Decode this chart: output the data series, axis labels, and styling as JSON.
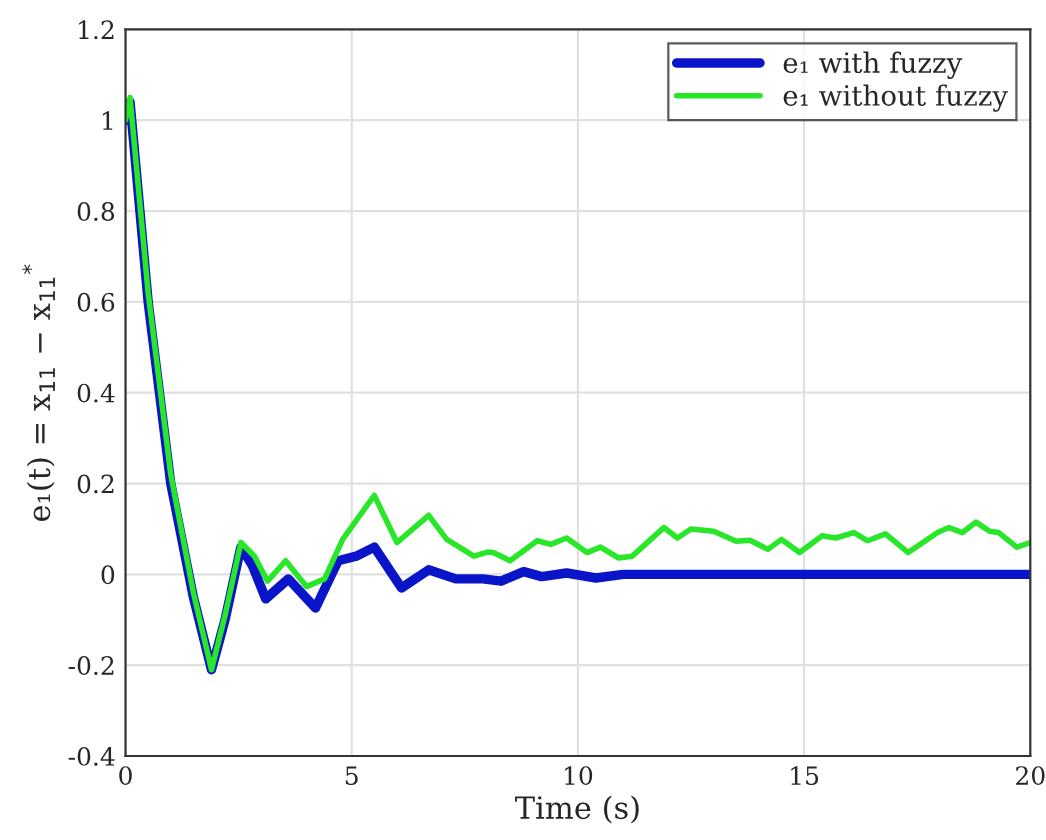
{
  "chart_data": {
    "type": "line",
    "xlabel": "Time (s)",
    "ylabel": "e₁(t) = x$_{11}$ − x$_{11}$$^{*}$",
    "xlim": [
      0,
      20
    ],
    "ylim": [
      -0.4,
      1.2
    ],
    "xticks": [
      0,
      5,
      10,
      15,
      20
    ],
    "yticks": [
      -0.4,
      -0.2,
      0,
      0.2,
      0.4,
      0.6,
      0.8,
      1,
      1.2
    ],
    "grid": true,
    "legend": "top right",
    "line_style": "solid",
    "marker": "none",
    "series": [
      {
        "name": "e₁ with fuzzy",
        "color": "#0a14c8",
        "x": [
          0,
          0.1,
          0.5,
          1.0,
          1.5,
          1.9,
          2.2,
          2.55,
          2.8,
          3.1,
          3.6,
          4.2,
          4.7,
          5.1,
          5.5,
          6.1,
          6.7,
          7.3,
          7.9,
          8.3,
          8.8,
          9.2,
          9.75,
          10.4,
          11.0,
          12,
          14,
          16,
          18,
          20
        ],
        "values": [
          1.0,
          1.04,
          0.6,
          0.2,
          -0.05,
          -0.21,
          -0.1,
          0.06,
          0.02,
          -0.054,
          -0.01,
          -0.074,
          0.03,
          0.04,
          0.06,
          -0.03,
          0.01,
          -0.01,
          -0.01,
          -0.015,
          0.006,
          -0.005,
          0.003,
          -0.008,
          0.0,
          0.0,
          0.0,
          0.0,
          0.0,
          0.0
        ]
      },
      {
        "name": "e₁ without fuzzy",
        "color": "#28e628",
        "x": [
          0,
          0.1,
          0.5,
          1.0,
          1.5,
          1.9,
          2.2,
          2.55,
          2.85,
          3.14,
          3.54,
          4.0,
          4.4,
          4.8,
          5.5,
          6.0,
          6.7,
          7.1,
          7.7,
          8.0,
          8.13,
          8.5,
          9.1,
          9.4,
          9.75,
          10.2,
          10.5,
          10.9,
          11.2,
          11.9,
          12.2,
          12.5,
          13.0,
          13.5,
          13.8,
          14.2,
          14.5,
          14.9,
          15.4,
          15.7,
          16.1,
          16.4,
          16.8,
          17.3,
          17.95,
          18.2,
          18.5,
          18.8,
          19.1,
          19.3,
          19.7,
          20
        ],
        "values": [
          1.0,
          1.05,
          0.62,
          0.22,
          -0.04,
          -0.21,
          -0.09,
          0.07,
          0.04,
          -0.015,
          0.03,
          -0.027,
          -0.01,
          0.077,
          0.174,
          0.07,
          0.13,
          0.077,
          0.04,
          0.049,
          0.048,
          0.03,
          0.074,
          0.066,
          0.08,
          0.048,
          0.06,
          0.036,
          0.04,
          0.103,
          0.08,
          0.1,
          0.095,
          0.073,
          0.075,
          0.055,
          0.077,
          0.048,
          0.085,
          0.08,
          0.092,
          0.074,
          0.089,
          0.048,
          0.092,
          0.103,
          0.092,
          0.115,
          0.095,
          0.092,
          0.06,
          0.07
        ]
      }
    ]
  }
}
